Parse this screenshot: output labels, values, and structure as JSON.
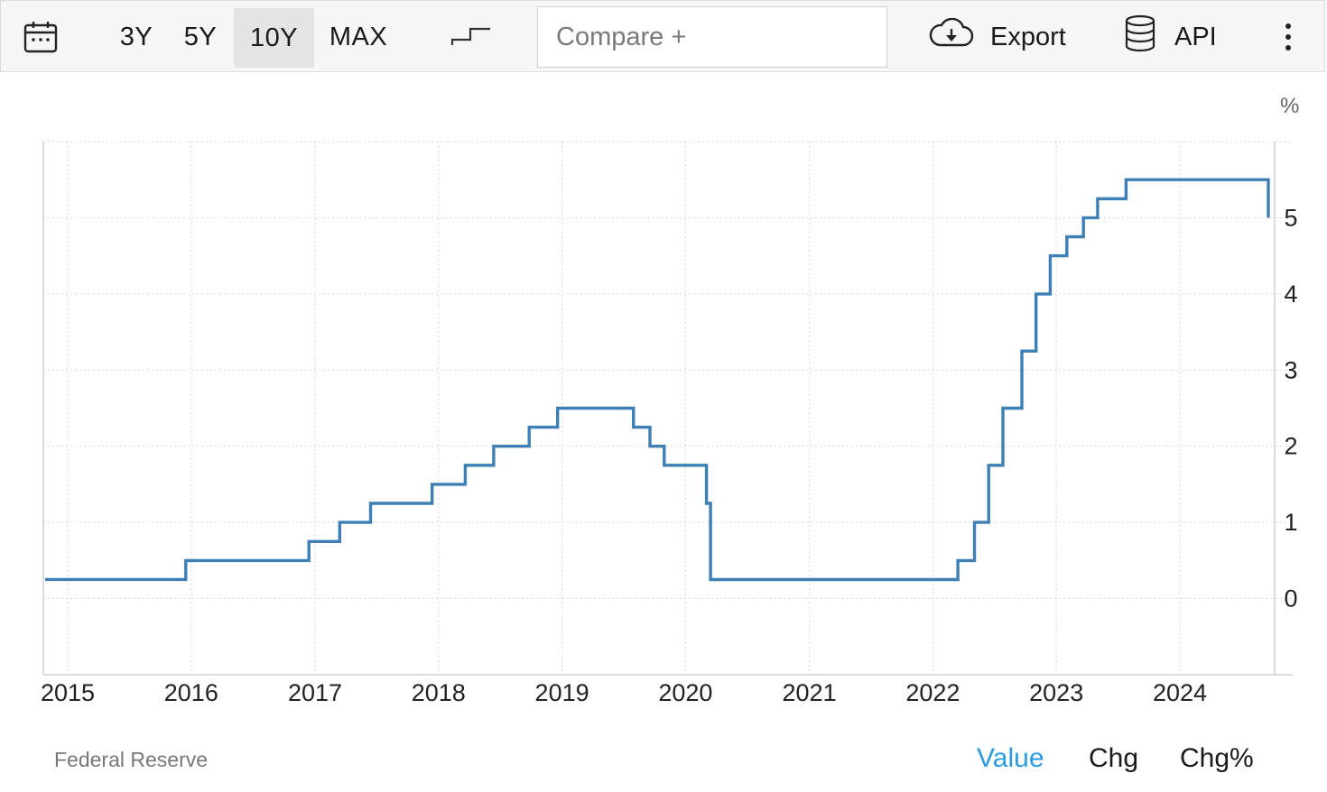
{
  "toolbar": {
    "calendar_icon": "calendar-icon",
    "ranges": [
      "3Y",
      "5Y",
      "10Y",
      "MAX"
    ],
    "selected_range": "10Y",
    "chart_style_icon": "step-line-icon",
    "compare_placeholder": "Compare +",
    "export_icon": "cloud-download-icon",
    "export_label": "Export",
    "api_icon": "database-icon",
    "api_label": "API",
    "more_icon": "vertical-ellipsis-icon"
  },
  "chart": {
    "unit": "%",
    "source": "Federal Reserve"
  },
  "value_tabs": {
    "items": [
      "Value",
      "Chg",
      "Chg%"
    ],
    "selected": "Value",
    "active_color": "#2b9be0"
  },
  "chart_data": {
    "type": "line",
    "interpolation": "step",
    "line_color": "#3e80b6",
    "grid": true,
    "y_axis_side": "right",
    "ylim": [
      -1,
      6
    ],
    "y_ticks": [
      0,
      1,
      2,
      3,
      4,
      5
    ],
    "x_ticks": [
      "2015",
      "2016",
      "2017",
      "2018",
      "2019",
      "2020",
      "2021",
      "2022",
      "2023",
      "2024"
    ],
    "series": [
      {
        "points": [
          [
            "2014-10-20",
            0.25
          ],
          [
            "2015-12-16",
            0.5
          ],
          [
            "2016-12-14",
            0.75
          ],
          [
            "2017-03-15",
            1.0
          ],
          [
            "2017-06-14",
            1.25
          ],
          [
            "2017-12-13",
            1.5
          ],
          [
            "2018-03-21",
            1.75
          ],
          [
            "2018-06-13",
            2.0
          ],
          [
            "2018-09-26",
            2.25
          ],
          [
            "2018-12-19",
            2.5
          ],
          [
            "2019-07-31",
            2.25
          ],
          [
            "2019-09-18",
            2.0
          ],
          [
            "2019-10-30",
            1.75
          ],
          [
            "2020-03-03",
            1.25
          ],
          [
            "2020-03-15",
            0.25
          ],
          [
            "2022-03-16",
            0.5
          ],
          [
            "2022-05-04",
            1.0
          ],
          [
            "2022-06-15",
            1.75
          ],
          [
            "2022-07-27",
            2.5
          ],
          [
            "2022-09-21",
            3.25
          ],
          [
            "2022-11-02",
            4.0
          ],
          [
            "2022-12-14",
            4.5
          ],
          [
            "2023-02-01",
            4.75
          ],
          [
            "2023-03-22",
            5.0
          ],
          [
            "2023-05-03",
            5.25
          ],
          [
            "2023-07-26",
            5.5
          ],
          [
            "2024-09-18",
            5.0
          ]
        ]
      }
    ]
  }
}
